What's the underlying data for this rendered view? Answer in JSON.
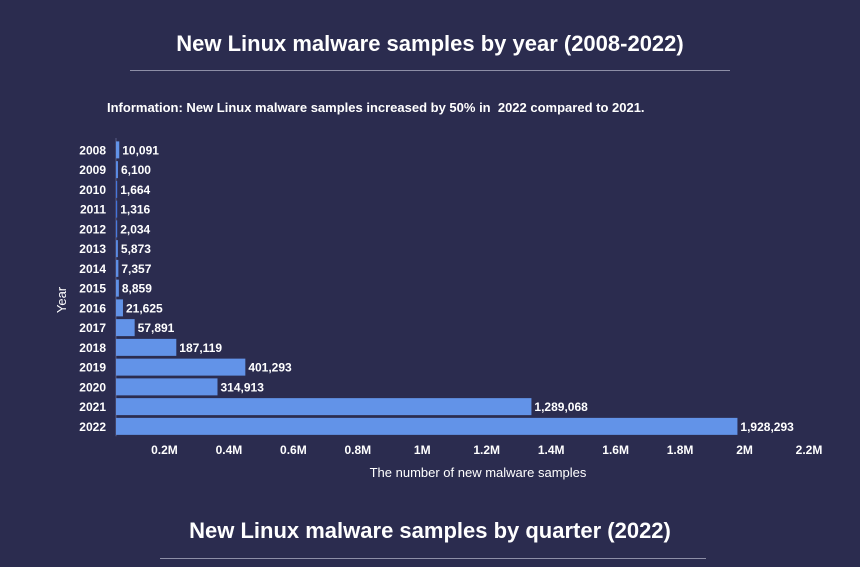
{
  "page": {
    "title": "New Linux malware samples by year (2008-2022)",
    "info": "Information: New Linux malware samples increased by 50% in  2022 compared to 2021.",
    "next_title": "New Linux malware samples by quarter (2022)"
  },
  "chart_data": {
    "type": "bar",
    "orientation": "horizontal",
    "categories": [
      "2008",
      "2009",
      "2010",
      "2011",
      "2012",
      "2013",
      "2014",
      "2015",
      "2016",
      "2017",
      "2018",
      "2019",
      "2020",
      "2021",
      "2022"
    ],
    "values": [
      10091,
      6100,
      1664,
      1316,
      2034,
      5873,
      7357,
      8859,
      21625,
      57891,
      187119,
      401293,
      314913,
      1289068,
      1928293
    ],
    "data_labels": [
      "10,091",
      "6,100",
      "1,664",
      "1,316",
      "2,034",
      "5,873",
      "7,357",
      "8,859",
      "21,625",
      "57,891",
      "187,119",
      "401,293",
      "314,913",
      "1,289,068",
      "1,928,293"
    ],
    "xlabel": "The number of new malware samples",
    "ylabel": "Year",
    "xlim": [
      0,
      2200000
    ],
    "xticks": [
      200000,
      400000,
      600000,
      800000,
      1000000,
      1200000,
      1400000,
      1600000,
      1800000,
      2000000,
      2200000
    ],
    "xtick_labels": [
      "0.2M",
      "0.4M",
      "0.6M",
      "0.8M",
      "1M",
      "1.2M",
      "1.4M",
      "1.6M",
      "1.8M",
      "2M",
      "2.2M"
    ],
    "grid": false,
    "colors": {
      "background": "#2b2c4f",
      "bar_low": "#3f6fd9",
      "bar_mid": "#7fb1f4",
      "bar_high": "#ffffff"
    }
  }
}
